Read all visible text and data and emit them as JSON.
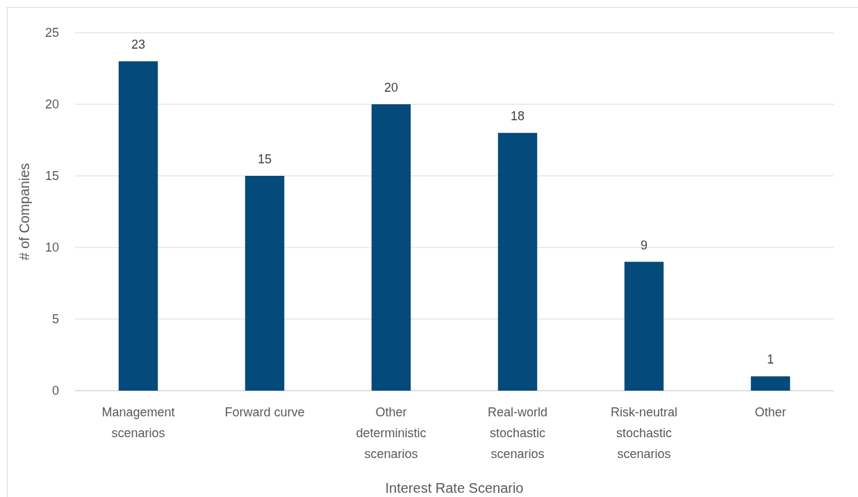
{
  "chart_data": {
    "type": "bar",
    "xlabel": "Interest Rate Scenario",
    "ylabel": "# of Companies",
    "categories": [
      "Management scenarios",
      "Forward curve",
      "Other deterministic scenarios",
      "Real-world stochastic scenarios",
      "Risk-neutral stochastic scenarios",
      "Other"
    ],
    "values": [
      23,
      15,
      20,
      18,
      9,
      1
    ],
    "color": "#044a7a",
    "ylim": [
      0,
      25
    ],
    "yticks": [
      0,
      5,
      10,
      15,
      20,
      25
    ],
    "grid": "y",
    "data_labels": true
  }
}
